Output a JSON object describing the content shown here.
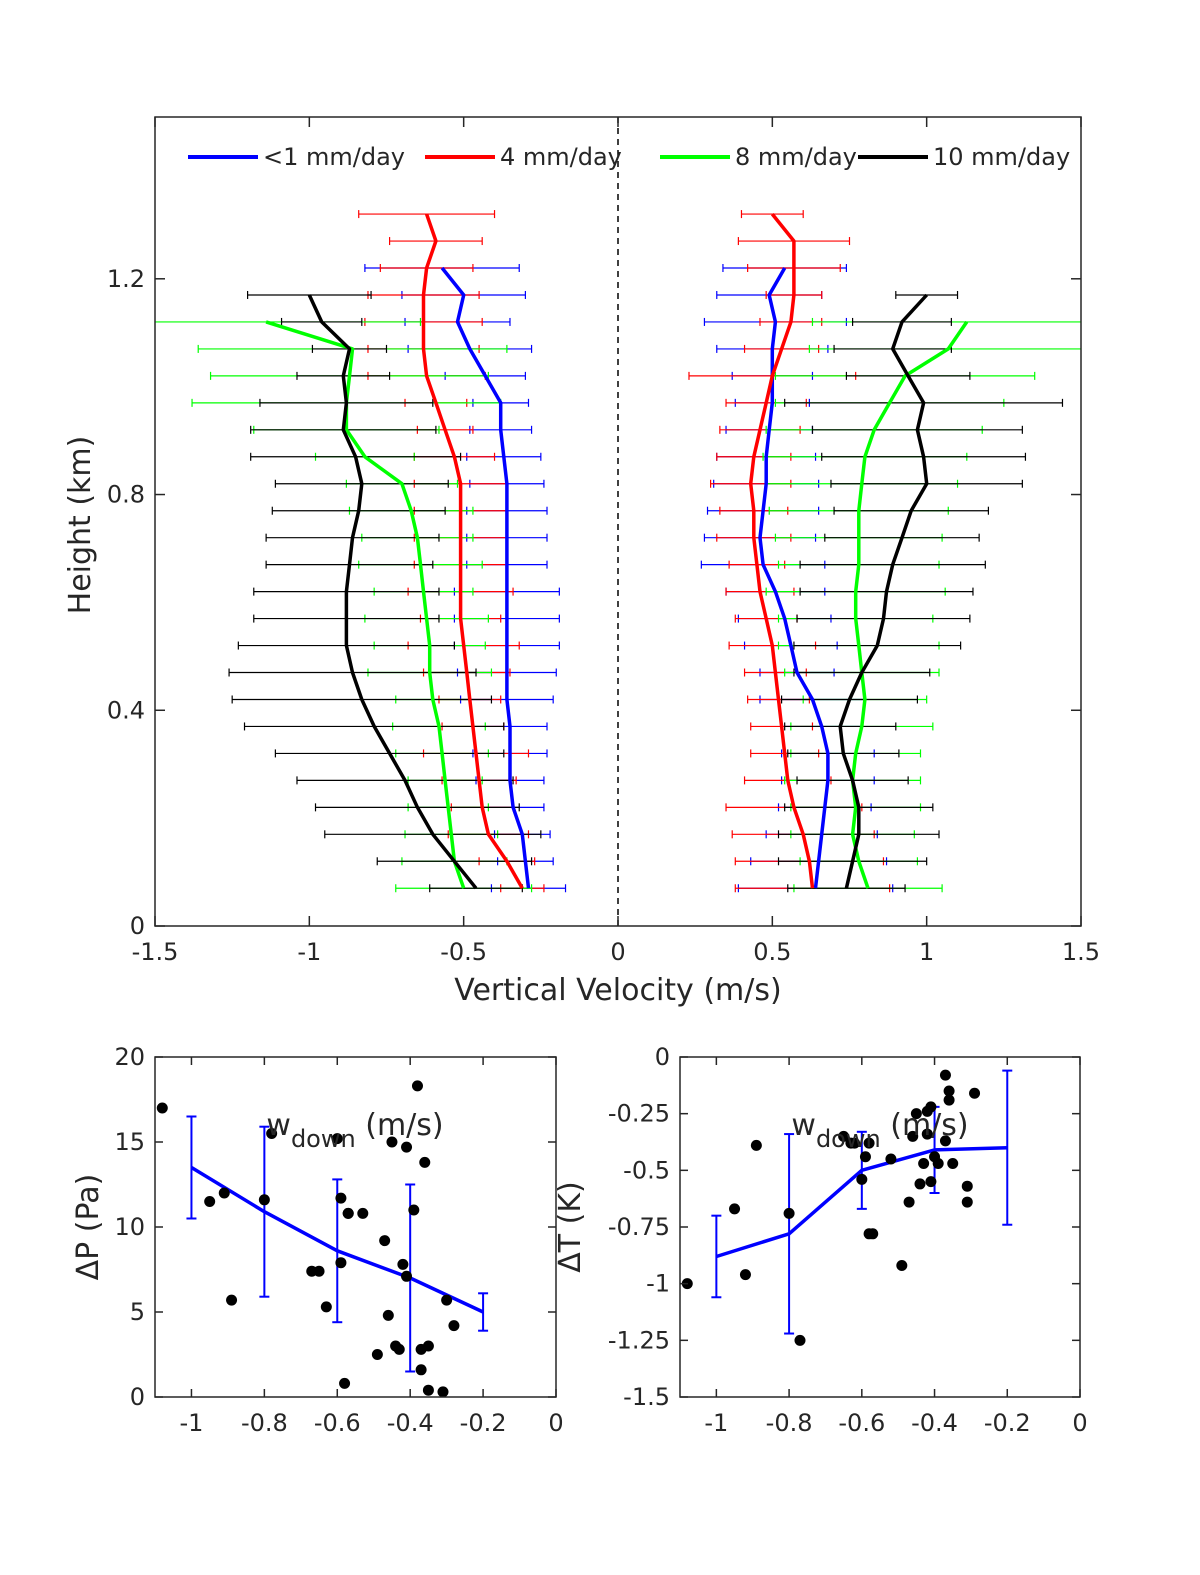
{
  "chart_data": [
    {
      "type": "line",
      "xlabel": "Vertical Velocity (m/s)",
      "ylabel": "Height (km)",
      "xlim": [
        -1.5,
        1.5
      ],
      "ylim": [
        0,
        1.5
      ],
      "xticks": [
        "-1.5",
        "-1",
        "-0.5",
        "0",
        "0.5",
        "1",
        "1.5"
      ],
      "xtick_values": [
        -1.5,
        -1,
        -0.5,
        0,
        0.5,
        1,
        1.5
      ],
      "yticks": [
        "0",
        "0.4",
        "0.8",
        "1.2"
      ],
      "ytick_values": [
        0,
        0.4,
        0.8,
        1.2
      ],
      "zero_line": "dashed vertical at x = 0",
      "grid": false,
      "legend_position": "top",
      "series": [
        {
          "name": "<1 mm/day",
          "color": "#0000ff",
          "down": {
            "y": [
              0.07,
              0.12,
              0.17,
              0.22,
              0.27,
              0.32,
              0.37,
              0.42,
              0.47,
              0.52,
              0.57,
              0.62,
              0.67,
              0.72,
              0.77,
              0.82,
              0.87,
              0.92,
              0.97,
              1.02,
              1.07,
              1.12,
              1.17,
              1.22
            ],
            "x": [
              -0.29,
              -0.3,
              -0.31,
              -0.34,
              -0.35,
              -0.35,
              -0.35,
              -0.36,
              -0.36,
              -0.36,
              -0.36,
              -0.36,
              -0.36,
              -0.36,
              -0.36,
              -0.36,
              -0.37,
              -0.38,
              -0.38,
              -0.43,
              -0.48,
              -0.52,
              -0.5,
              -0.57
            ],
            "err": [
              0.12,
              0.09,
              0.09,
              0.1,
              0.11,
              0.12,
              0.12,
              0.15,
              0.16,
              0.17,
              0.17,
              0.17,
              0.13,
              0.13,
              0.13,
              0.12,
              0.12,
              0.1,
              0.09,
              0.13,
              0.2,
              0.17,
              0.2,
              0.25
            ]
          },
          "up": {
            "y": [
              0.07,
              0.12,
              0.17,
              0.22,
              0.27,
              0.32,
              0.37,
              0.42,
              0.47,
              0.52,
              0.57,
              0.62,
              0.67,
              0.72,
              0.77,
              0.82,
              0.87,
              0.92,
              0.97,
              1.02,
              1.07,
              1.12,
              1.17,
              1.22
            ],
            "x": [
              0.64,
              0.65,
              0.66,
              0.67,
              0.68,
              0.68,
              0.66,
              0.63,
              0.58,
              0.56,
              0.54,
              0.51,
              0.47,
              0.46,
              0.47,
              0.48,
              0.48,
              0.49,
              0.5,
              0.5,
              0.5,
              0.51,
              0.49,
              0.54
            ],
            "err": [
              0.25,
              0.22,
              0.18,
              0.15,
              0.15,
              0.15,
              0.13,
              0.17,
              0.12,
              0.15,
              0.15,
              0.16,
              0.2,
              0.18,
              0.18,
              0.17,
              0.16,
              0.14,
              0.12,
              0.13,
              0.18,
              0.23,
              0.17,
              0.2
            ]
          }
        },
        {
          "name": "4 mm/day",
          "color": "#ff0000",
          "down": {
            "y": [
              0.07,
              0.12,
              0.17,
              0.22,
              0.27,
              0.32,
              0.37,
              0.42,
              0.47,
              0.52,
              0.57,
              0.62,
              0.67,
              0.72,
              0.77,
              0.82,
              0.87,
              0.92,
              0.97,
              1.02,
              1.07,
              1.12,
              1.17,
              1.22,
              1.27,
              1.32
            ],
            "x": [
              -0.31,
              -0.36,
              -0.42,
              -0.44,
              -0.45,
              -0.46,
              -0.47,
              -0.48,
              -0.49,
              -0.5,
              -0.51,
              -0.51,
              -0.51,
              -0.51,
              -0.51,
              -0.51,
              -0.53,
              -0.56,
              -0.59,
              -0.62,
              -0.63,
              -0.63,
              -0.63,
              -0.62,
              -0.59,
              -0.62
            ],
            "err": [
              0.07,
              0.09,
              0.13,
              0.1,
              0.12,
              0.17,
              0.1,
              0.1,
              0.14,
              0.18,
              0.13,
              0.17,
              0.15,
              0.15,
              0.15,
              0.15,
              0.13,
              0.09,
              0.1,
              0.19,
              0.18,
              0.19,
              0.18,
              0.15,
              0.15,
              0.22
            ]
          },
          "up": {
            "y": [
              0.07,
              0.12,
              0.17,
              0.22,
              0.27,
              0.32,
              0.37,
              0.42,
              0.47,
              0.52,
              0.57,
              0.62,
              0.67,
              0.72,
              0.77,
              0.82,
              0.87,
              0.92,
              0.97,
              1.02,
              1.07,
              1.12,
              1.17,
              1.22,
              1.27,
              1.32
            ],
            "x": [
              0.63,
              0.62,
              0.6,
              0.57,
              0.55,
              0.54,
              0.53,
              0.52,
              0.51,
              0.5,
              0.48,
              0.46,
              0.45,
              0.44,
              0.44,
              0.43,
              0.44,
              0.46,
              0.48,
              0.5,
              0.53,
              0.56,
              0.57,
              0.57,
              0.57,
              0.5
            ],
            "err": [
              0.25,
              0.24,
              0.23,
              0.22,
              0.14,
              0.11,
              0.1,
              0.1,
              0.1,
              0.14,
              0.1,
              0.11,
              0.09,
              0.12,
              0.11,
              0.13,
              0.12,
              0.13,
              0.13,
              0.27,
              0.12,
              0.1,
              0.09,
              0.15,
              0.18,
              0.1
            ]
          }
        },
        {
          "name": "8 mm/day",
          "color": "#00ff00",
          "down": {
            "y": [
              0.07,
              0.12,
              0.17,
              0.22,
              0.27,
              0.32,
              0.37,
              0.42,
              0.47,
              0.52,
              0.57,
              0.62,
              0.67,
              0.72,
              0.77,
              0.82,
              0.87,
              0.92,
              0.97,
              1.02,
              1.07,
              1.12
            ],
            "x": [
              -0.5,
              -0.53,
              -0.54,
              -0.55,
              -0.56,
              -0.57,
              -0.58,
              -0.6,
              -0.61,
              -0.61,
              -0.62,
              -0.63,
              -0.64,
              -0.65,
              -0.67,
              -0.7,
              -0.82,
              -0.88,
              -0.88,
              -0.87,
              -0.86,
              -1.14
            ],
            "err": [
              0.22,
              0.17,
              0.15,
              0.13,
              0.12,
              0.15,
              0.15,
              0.12,
              0.2,
              0.18,
              0.2,
              0.16,
              0.2,
              0.18,
              0.2,
              0.18,
              0.16,
              0.3,
              0.5,
              0.45,
              0.5,
              0.5
            ]
          },
          "up": {
            "y": [
              0.07,
              0.12,
              0.17,
              0.22,
              0.27,
              0.32,
              0.37,
              0.42,
              0.47,
              0.52,
              0.57,
              0.62,
              0.67,
              0.72,
              0.77,
              0.82,
              0.87,
              0.92,
              0.97,
              1.02,
              1.07,
              1.12
            ],
            "x": [
              0.81,
              0.78,
              0.76,
              0.77,
              0.76,
              0.77,
              0.79,
              0.8,
              0.79,
              0.78,
              0.77,
              0.77,
              0.78,
              0.78,
              0.78,
              0.79,
              0.8,
              0.83,
              0.88,
              0.93,
              1.07,
              1.13
            ],
            "err": [
              0.24,
              0.19,
              0.2,
              0.21,
              0.22,
              0.21,
              0.23,
              0.2,
              0.25,
              0.26,
              0.25,
              0.29,
              0.26,
              0.27,
              0.29,
              0.31,
              0.33,
              0.35,
              0.37,
              0.42,
              0.45,
              0.5
            ]
          }
        },
        {
          "name": "10 mm/day",
          "color": "#000000",
          "down": {
            "y": [
              0.07,
              0.12,
              0.17,
              0.22,
              0.27,
              0.32,
              0.37,
              0.42,
              0.47,
              0.52,
              0.57,
              0.62,
              0.67,
              0.72,
              0.77,
              0.82,
              0.87,
              0.92,
              0.97,
              1.02,
              1.07,
              1.12,
              1.17
            ],
            "x": [
              -0.46,
              -0.53,
              -0.6,
              -0.65,
              -0.69,
              -0.74,
              -0.79,
              -0.83,
              -0.86,
              -0.88,
              -0.88,
              -0.88,
              -0.87,
              -0.86,
              -0.84,
              -0.83,
              -0.85,
              -0.89,
              -0.88,
              -0.89,
              -0.87,
              -0.96,
              -1.0
            ],
            "err": [
              0.15,
              0.25,
              0.35,
              0.33,
              0.35,
              0.37,
              0.42,
              0.42,
              0.4,
              0.35,
              0.3,
              0.3,
              0.27,
              0.28,
              0.28,
              0.28,
              0.34,
              0.3,
              0.28,
              0.15,
              0.12,
              0.13,
              0.2
            ]
          },
          "up": {
            "y": [
              0.07,
              0.12,
              0.17,
              0.22,
              0.27,
              0.32,
              0.37,
              0.42,
              0.47,
              0.52,
              0.57,
              0.62,
              0.67,
              0.72,
              0.77,
              0.82,
              0.87,
              0.92,
              0.97,
              1.02,
              1.07,
              1.12,
              1.17
            ],
            "x": [
              0.74,
              0.76,
              0.78,
              0.78,
              0.76,
              0.73,
              0.72,
              0.75,
              0.79,
              0.84,
              0.86,
              0.87,
              0.89,
              0.92,
              0.95,
              1.0,
              0.99,
              0.97,
              0.99,
              0.94,
              0.89,
              0.92,
              1.0
            ],
            "err": [
              0.19,
              0.24,
              0.26,
              0.24,
              0.18,
              0.18,
              0.18,
              0.22,
              0.22,
              0.27,
              0.28,
              0.28,
              0.3,
              0.25,
              0.25,
              0.31,
              0.33,
              0.34,
              0.45,
              0.2,
              0.19,
              0.16,
              0.1
            ]
          }
        }
      ]
    },
    {
      "type": "scatter",
      "xlabel": "w",
      "xlabel_sub": "down",
      "xlabel_unit": " (m/s)",
      "ylabel": "ΔP (Pa)",
      "xlim": [
        -1.1,
        0
      ],
      "ylim": [
        0,
        20
      ],
      "xticks": [
        "-1",
        "-0.8",
        "-0.6",
        "-0.4",
        "-0.2",
        "0"
      ],
      "xtick_values": [
        -1,
        -0.8,
        -0.6,
        -0.4,
        -0.2,
        0
      ],
      "yticks": [
        "0",
        "5",
        "10",
        "15",
        "20"
      ],
      "ytick_values": [
        0,
        5,
        10,
        15,
        20
      ],
      "points": {
        "x": [
          -1.08,
          -0.95,
          -0.91,
          -0.89,
          -0.8,
          -0.78,
          -0.67,
          -0.65,
          -0.63,
          -0.6,
          -0.59,
          -0.59,
          -0.57,
          -0.58,
          -0.57,
          -0.53,
          -0.49,
          -0.47,
          -0.46,
          -0.45,
          -0.44,
          -0.43,
          -0.42,
          -0.41,
          -0.41,
          -0.39,
          -0.38,
          -0.37,
          -0.37,
          -0.36,
          -0.35,
          -0.35,
          -0.31,
          -0.3,
          -0.28
        ],
        "y": [
          17,
          11.5,
          12,
          5.7,
          11.6,
          15.5,
          7.4,
          7.4,
          5.3,
          15.2,
          11.7,
          7.9,
          10.8,
          0.8,
          10.8,
          10.8,
          2.5,
          9.2,
          4.8,
          15,
          3,
          2.8,
          7.8,
          14.7,
          7.1,
          11,
          18.3,
          2.8,
          1.6,
          13.8,
          3.0,
          0.4,
          0.3,
          5.7,
          4.2
        ]
      },
      "mean_line": {
        "x": [
          -1.0,
          -0.8,
          -0.6,
          -0.4,
          -0.2
        ],
        "y": [
          13.5,
          10.9,
          8.6,
          7.0,
          5.0
        ],
        "err": [
          3.0,
          5.0,
          4.2,
          5.5,
          1.1
        ]
      },
      "point_color": "#000000",
      "line_color": "#0000ff"
    },
    {
      "type": "scatter",
      "xlabel": "w",
      "xlabel_sub": "down",
      "xlabel_unit": " (m/s)",
      "ylabel": "ΔT (K)",
      "xlim": [
        -1.1,
        0
      ],
      "ylim": [
        -1.5,
        0
      ],
      "xticks": [
        "-1",
        "-0.8",
        "-0.6",
        "-0.4",
        "-0.2",
        "0"
      ],
      "xtick_values": [
        -1,
        -0.8,
        -0.6,
        -0.4,
        -0.2,
        0
      ],
      "yticks": [
        "0",
        "-0.25",
        "-0.5",
        "-0.75",
        "-1",
        "-1.25",
        "-1.5"
      ],
      "ytick_values": [
        0,
        -0.25,
        -0.5,
        -0.75,
        -1,
        -1.25,
        -1.5
      ],
      "points": {
        "x": [
          -1.08,
          -0.95,
          -0.92,
          -0.89,
          -0.8,
          -0.77,
          -0.65,
          -0.63,
          -0.62,
          -0.6,
          -0.59,
          -0.58,
          -0.58,
          -0.57,
          -0.52,
          -0.49,
          -0.47,
          -0.46,
          -0.45,
          -0.44,
          -0.43,
          -0.42,
          -0.42,
          -0.41,
          -0.41,
          -0.4,
          -0.39,
          -0.37,
          -0.37,
          -0.36,
          -0.36,
          -0.35,
          -0.31,
          -0.31,
          -0.29
        ],
        "y": [
          -1.0,
          -0.67,
          -0.96,
          -0.39,
          -0.69,
          -1.25,
          -0.35,
          -0.38,
          -0.38,
          -0.54,
          -0.44,
          -0.38,
          -0.78,
          -0.78,
          -0.45,
          -0.92,
          -0.64,
          -0.35,
          -0.25,
          -0.56,
          -0.47,
          -0.24,
          -0.34,
          -0.22,
          -0.55,
          -0.44,
          -0.47,
          -0.37,
          -0.08,
          -0.15,
          -0.19,
          -0.47,
          -0.57,
          -0.64,
          -0.16
        ]
      },
      "mean_line": {
        "x": [
          -1.0,
          -0.8,
          -0.6,
          -0.4,
          -0.2
        ],
        "y": [
          -0.88,
          -0.78,
          -0.5,
          -0.41,
          -0.4
        ],
        "err": [
          0.18,
          0.44,
          0.17,
          0.19,
          0.34
        ]
      },
      "point_color": "#000000",
      "line_color": "#0000ff"
    }
  ]
}
